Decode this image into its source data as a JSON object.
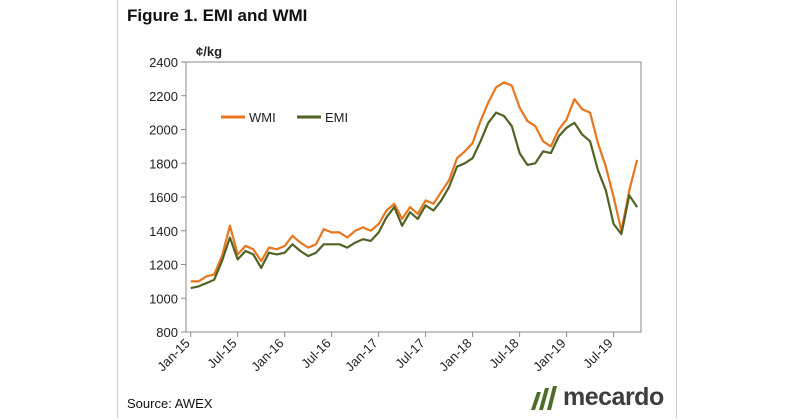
{
  "figure_title": "Figure 1. EMI and WMI",
  "source": "Source: AWEX",
  "brand": {
    "name": "mecardo",
    "mark_color": "#4f6b2a",
    "text_color": "#3d3d3d"
  },
  "chart_data": {
    "type": "line",
    "ylabel": "¢/kg",
    "ylim": [
      800,
      2400
    ],
    "yticks": [
      800,
      1000,
      1200,
      1400,
      1600,
      1800,
      2000,
      2200,
      2400
    ],
    "xlim": [
      "2015-01",
      "2019-10"
    ],
    "xticks": [
      {
        "label": "Jan-15",
        "x": "2015-01"
      },
      {
        "label": "Jul-15",
        "x": "2015-07"
      },
      {
        "label": "Jan-16",
        "x": "2016-01"
      },
      {
        "label": "Jul-16",
        "x": "2016-07"
      },
      {
        "label": "Jan-17",
        "x": "2017-01"
      },
      {
        "label": "Jul-17",
        "x": "2017-07"
      },
      {
        "label": "Jan-18",
        "x": "2018-01"
      },
      {
        "label": "Jul-18",
        "x": "2018-07"
      },
      {
        "label": "Jan-19",
        "x": "2019-01"
      },
      {
        "label": "Jul-19",
        "x": "2019-07"
      }
    ],
    "grid": "none",
    "legend_position": "upper-left",
    "series": [
      {
        "name": "WMI",
        "color": "#e8761d",
        "points": [
          [
            "2015-01",
            1100
          ],
          [
            "2015-02",
            1100
          ],
          [
            "2015-03",
            1130
          ],
          [
            "2015-04",
            1140
          ],
          [
            "2015-05",
            1250
          ],
          [
            "2015-06",
            1430
          ],
          [
            "2015-07",
            1260
          ],
          [
            "2015-08",
            1310
          ],
          [
            "2015-09",
            1290
          ],
          [
            "2015-10",
            1220
          ],
          [
            "2015-11",
            1300
          ],
          [
            "2015-12",
            1290
          ],
          [
            "2016-01",
            1310
          ],
          [
            "2016-02",
            1370
          ],
          [
            "2016-03",
            1330
          ],
          [
            "2016-04",
            1300
          ],
          [
            "2016-05",
            1320
          ],
          [
            "2016-06",
            1410
          ],
          [
            "2016-07",
            1390
          ],
          [
            "2016-08",
            1390
          ],
          [
            "2016-09",
            1360
          ],
          [
            "2016-10",
            1400
          ],
          [
            "2016-11",
            1420
          ],
          [
            "2016-12",
            1400
          ],
          [
            "2017-01",
            1440
          ],
          [
            "2017-02",
            1520
          ],
          [
            "2017-03",
            1560
          ],
          [
            "2017-04",
            1470
          ],
          [
            "2017-05",
            1540
          ],
          [
            "2017-06",
            1500
          ],
          [
            "2017-07",
            1580
          ],
          [
            "2017-08",
            1560
          ],
          [
            "2017-09",
            1630
          ],
          [
            "2017-10",
            1700
          ],
          [
            "2017-11",
            1830
          ],
          [
            "2017-12",
            1870
          ],
          [
            "2018-01",
            1920
          ],
          [
            "2018-02",
            2050
          ],
          [
            "2018-03",
            2160
          ],
          [
            "2018-04",
            2250
          ],
          [
            "2018-05",
            2280
          ],
          [
            "2018-06",
            2260
          ],
          [
            "2018-07",
            2130
          ],
          [
            "2018-08",
            2050
          ],
          [
            "2018-09",
            2020
          ],
          [
            "2018-10",
            1930
          ],
          [
            "2018-11",
            1900
          ],
          [
            "2018-12",
            2000
          ],
          [
            "2019-01",
            2060
          ],
          [
            "2019-02",
            2180
          ],
          [
            "2019-03",
            2120
          ],
          [
            "2019-04",
            2100
          ],
          [
            "2019-05",
            1920
          ],
          [
            "2019-06",
            1780
          ],
          [
            "2019-07",
            1600
          ],
          [
            "2019-08",
            1400
          ],
          [
            "2019-09",
            1640
          ],
          [
            "2019-10",
            1820
          ]
        ]
      },
      {
        "name": "EMI",
        "color": "#4f6325",
        "points": [
          [
            "2015-01",
            1060
          ],
          [
            "2015-02",
            1070
          ],
          [
            "2015-03",
            1090
          ],
          [
            "2015-04",
            1110
          ],
          [
            "2015-05",
            1220
          ],
          [
            "2015-06",
            1360
          ],
          [
            "2015-07",
            1230
          ],
          [
            "2015-08",
            1280
          ],
          [
            "2015-09",
            1260
          ],
          [
            "2015-10",
            1180
          ],
          [
            "2015-11",
            1270
          ],
          [
            "2015-12",
            1260
          ],
          [
            "2016-01",
            1270
          ],
          [
            "2016-02",
            1320
          ],
          [
            "2016-03",
            1280
          ],
          [
            "2016-04",
            1250
          ],
          [
            "2016-05",
            1270
          ],
          [
            "2016-06",
            1320
          ],
          [
            "2016-07",
            1320
          ],
          [
            "2016-08",
            1320
          ],
          [
            "2016-09",
            1300
          ],
          [
            "2016-10",
            1330
          ],
          [
            "2016-11",
            1350
          ],
          [
            "2016-12",
            1340
          ],
          [
            "2017-01",
            1390
          ],
          [
            "2017-02",
            1480
          ],
          [
            "2017-03",
            1540
          ],
          [
            "2017-04",
            1430
          ],
          [
            "2017-05",
            1510
          ],
          [
            "2017-06",
            1470
          ],
          [
            "2017-07",
            1550
          ],
          [
            "2017-08",
            1520
          ],
          [
            "2017-09",
            1580
          ],
          [
            "2017-10",
            1660
          ],
          [
            "2017-11",
            1780
          ],
          [
            "2017-12",
            1800
          ],
          [
            "2018-01",
            1830
          ],
          [
            "2018-02",
            1930
          ],
          [
            "2018-03",
            2040
          ],
          [
            "2018-04",
            2100
          ],
          [
            "2018-05",
            2080
          ],
          [
            "2018-06",
            2020
          ],
          [
            "2018-07",
            1860
          ],
          [
            "2018-08",
            1790
          ],
          [
            "2018-09",
            1800
          ],
          [
            "2018-10",
            1870
          ],
          [
            "2018-11",
            1860
          ],
          [
            "2018-12",
            1960
          ],
          [
            "2019-01",
            2010
          ],
          [
            "2019-02",
            2040
          ],
          [
            "2019-03",
            1970
          ],
          [
            "2019-04",
            1930
          ],
          [
            "2019-05",
            1760
          ],
          [
            "2019-06",
            1640
          ],
          [
            "2019-07",
            1440
          ],
          [
            "2019-08",
            1380
          ],
          [
            "2019-09",
            1610
          ],
          [
            "2019-10",
            1540
          ]
        ]
      }
    ]
  }
}
